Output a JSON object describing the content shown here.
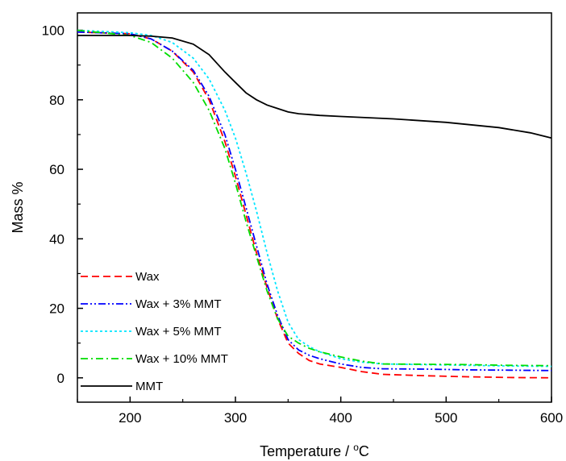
{
  "chart_data": {
    "type": "line",
    "title": "",
    "xlabel": "Temperature / ",
    "xlabel_unit": "C",
    "xlabel_degree": "o",
    "ylabel": "Mass %",
    "xlim": [
      150,
      600
    ],
    "ylim": [
      -7,
      105
    ],
    "x_ticks": [
      200,
      300,
      400,
      500,
      600
    ],
    "y_ticks": [
      0,
      20,
      40,
      60,
      80,
      100
    ],
    "grid": false,
    "legend_position": "bottom-left",
    "series": [
      {
        "name": "Wax",
        "color": "#ff0000",
        "dash": "dash",
        "points": [
          [
            150,
            99.5
          ],
          [
            200,
            99
          ],
          [
            220,
            97.5
          ],
          [
            240,
            94
          ],
          [
            260,
            88
          ],
          [
            275,
            80
          ],
          [
            290,
            68
          ],
          [
            300,
            58
          ],
          [
            310,
            47
          ],
          [
            320,
            36
          ],
          [
            330,
            26
          ],
          [
            340,
            17
          ],
          [
            350,
            10
          ],
          [
            360,
            7
          ],
          [
            370,
            5
          ],
          [
            380,
            4
          ],
          [
            400,
            3
          ],
          [
            420,
            1.8
          ],
          [
            440,
            1
          ],
          [
            480,
            0.6
          ],
          [
            520,
            0.3
          ],
          [
            560,
            0.1
          ],
          [
            600,
            0
          ]
        ]
      },
      {
        "name": "Wax + 3% MMT",
        "color": "#0000ff",
        "dash": "dashdotdot",
        "points": [
          [
            150,
            99.5
          ],
          [
            200,
            99
          ],
          [
            220,
            97.5
          ],
          [
            240,
            94
          ],
          [
            260,
            88.5
          ],
          [
            275,
            81
          ],
          [
            290,
            70
          ],
          [
            300,
            60
          ],
          [
            310,
            49
          ],
          [
            320,
            38
          ],
          [
            330,
            27
          ],
          [
            340,
            18
          ],
          [
            350,
            11
          ],
          [
            360,
            8
          ],
          [
            370,
            6.5
          ],
          [
            380,
            5.5
          ],
          [
            400,
            4
          ],
          [
            420,
            3
          ],
          [
            440,
            2.6
          ],
          [
            480,
            2.5
          ],
          [
            520,
            2.3
          ],
          [
            560,
            2.2
          ],
          [
            600,
            2.1
          ]
        ]
      },
      {
        "name": "Wax + 5% MMT",
        "color": "#00e5ff",
        "dash": "dot",
        "points": [
          [
            150,
            100
          ],
          [
            200,
            99.3
          ],
          [
            220,
            98.5
          ],
          [
            240,
            96.5
          ],
          [
            260,
            92
          ],
          [
            275,
            86
          ],
          [
            290,
            77
          ],
          [
            300,
            69
          ],
          [
            310,
            59
          ],
          [
            320,
            48
          ],
          [
            330,
            36
          ],
          [
            340,
            25
          ],
          [
            350,
            16
          ],
          [
            360,
            11
          ],
          [
            370,
            9
          ],
          [
            380,
            7.5
          ],
          [
            400,
            5.5
          ],
          [
            420,
            4.5
          ],
          [
            440,
            4
          ],
          [
            480,
            3.8
          ],
          [
            520,
            3.6
          ],
          [
            560,
            3.4
          ],
          [
            600,
            3.3
          ]
        ]
      },
      {
        "name": "Wax + 10% MMT",
        "color": "#00dd00",
        "dash": "dashdot",
        "points": [
          [
            150,
            100
          ],
          [
            200,
            98.5
          ],
          [
            220,
            96.5
          ],
          [
            240,
            92
          ],
          [
            260,
            85
          ],
          [
            275,
            77
          ],
          [
            290,
            66
          ],
          [
            300,
            56
          ],
          [
            310,
            45
          ],
          [
            320,
            35
          ],
          [
            330,
            25
          ],
          [
            340,
            17
          ],
          [
            350,
            12
          ],
          [
            360,
            10
          ],
          [
            370,
            8.5
          ],
          [
            380,
            7.5
          ],
          [
            400,
            6
          ],
          [
            420,
            4.8
          ],
          [
            440,
            4
          ],
          [
            480,
            3.9
          ],
          [
            520,
            3.8
          ],
          [
            560,
            3.6
          ],
          [
            600,
            3.5
          ]
        ]
      },
      {
        "name": "MMT",
        "color": "#000000",
        "dash": "solid",
        "points": [
          [
            150,
            98.5
          ],
          [
            200,
            98.5
          ],
          [
            220,
            98.3
          ],
          [
            240,
            97.8
          ],
          [
            260,
            96
          ],
          [
            275,
            93
          ],
          [
            290,
            88
          ],
          [
            300,
            85
          ],
          [
            310,
            82
          ],
          [
            320,
            80
          ],
          [
            330,
            78.5
          ],
          [
            340,
            77.5
          ],
          [
            350,
            76.5
          ],
          [
            360,
            76
          ],
          [
            380,
            75.5
          ],
          [
            400,
            75.2
          ],
          [
            450,
            74.5
          ],
          [
            500,
            73.5
          ],
          [
            550,
            72
          ],
          [
            580,
            70.5
          ],
          [
            600,
            69
          ]
        ]
      }
    ]
  }
}
